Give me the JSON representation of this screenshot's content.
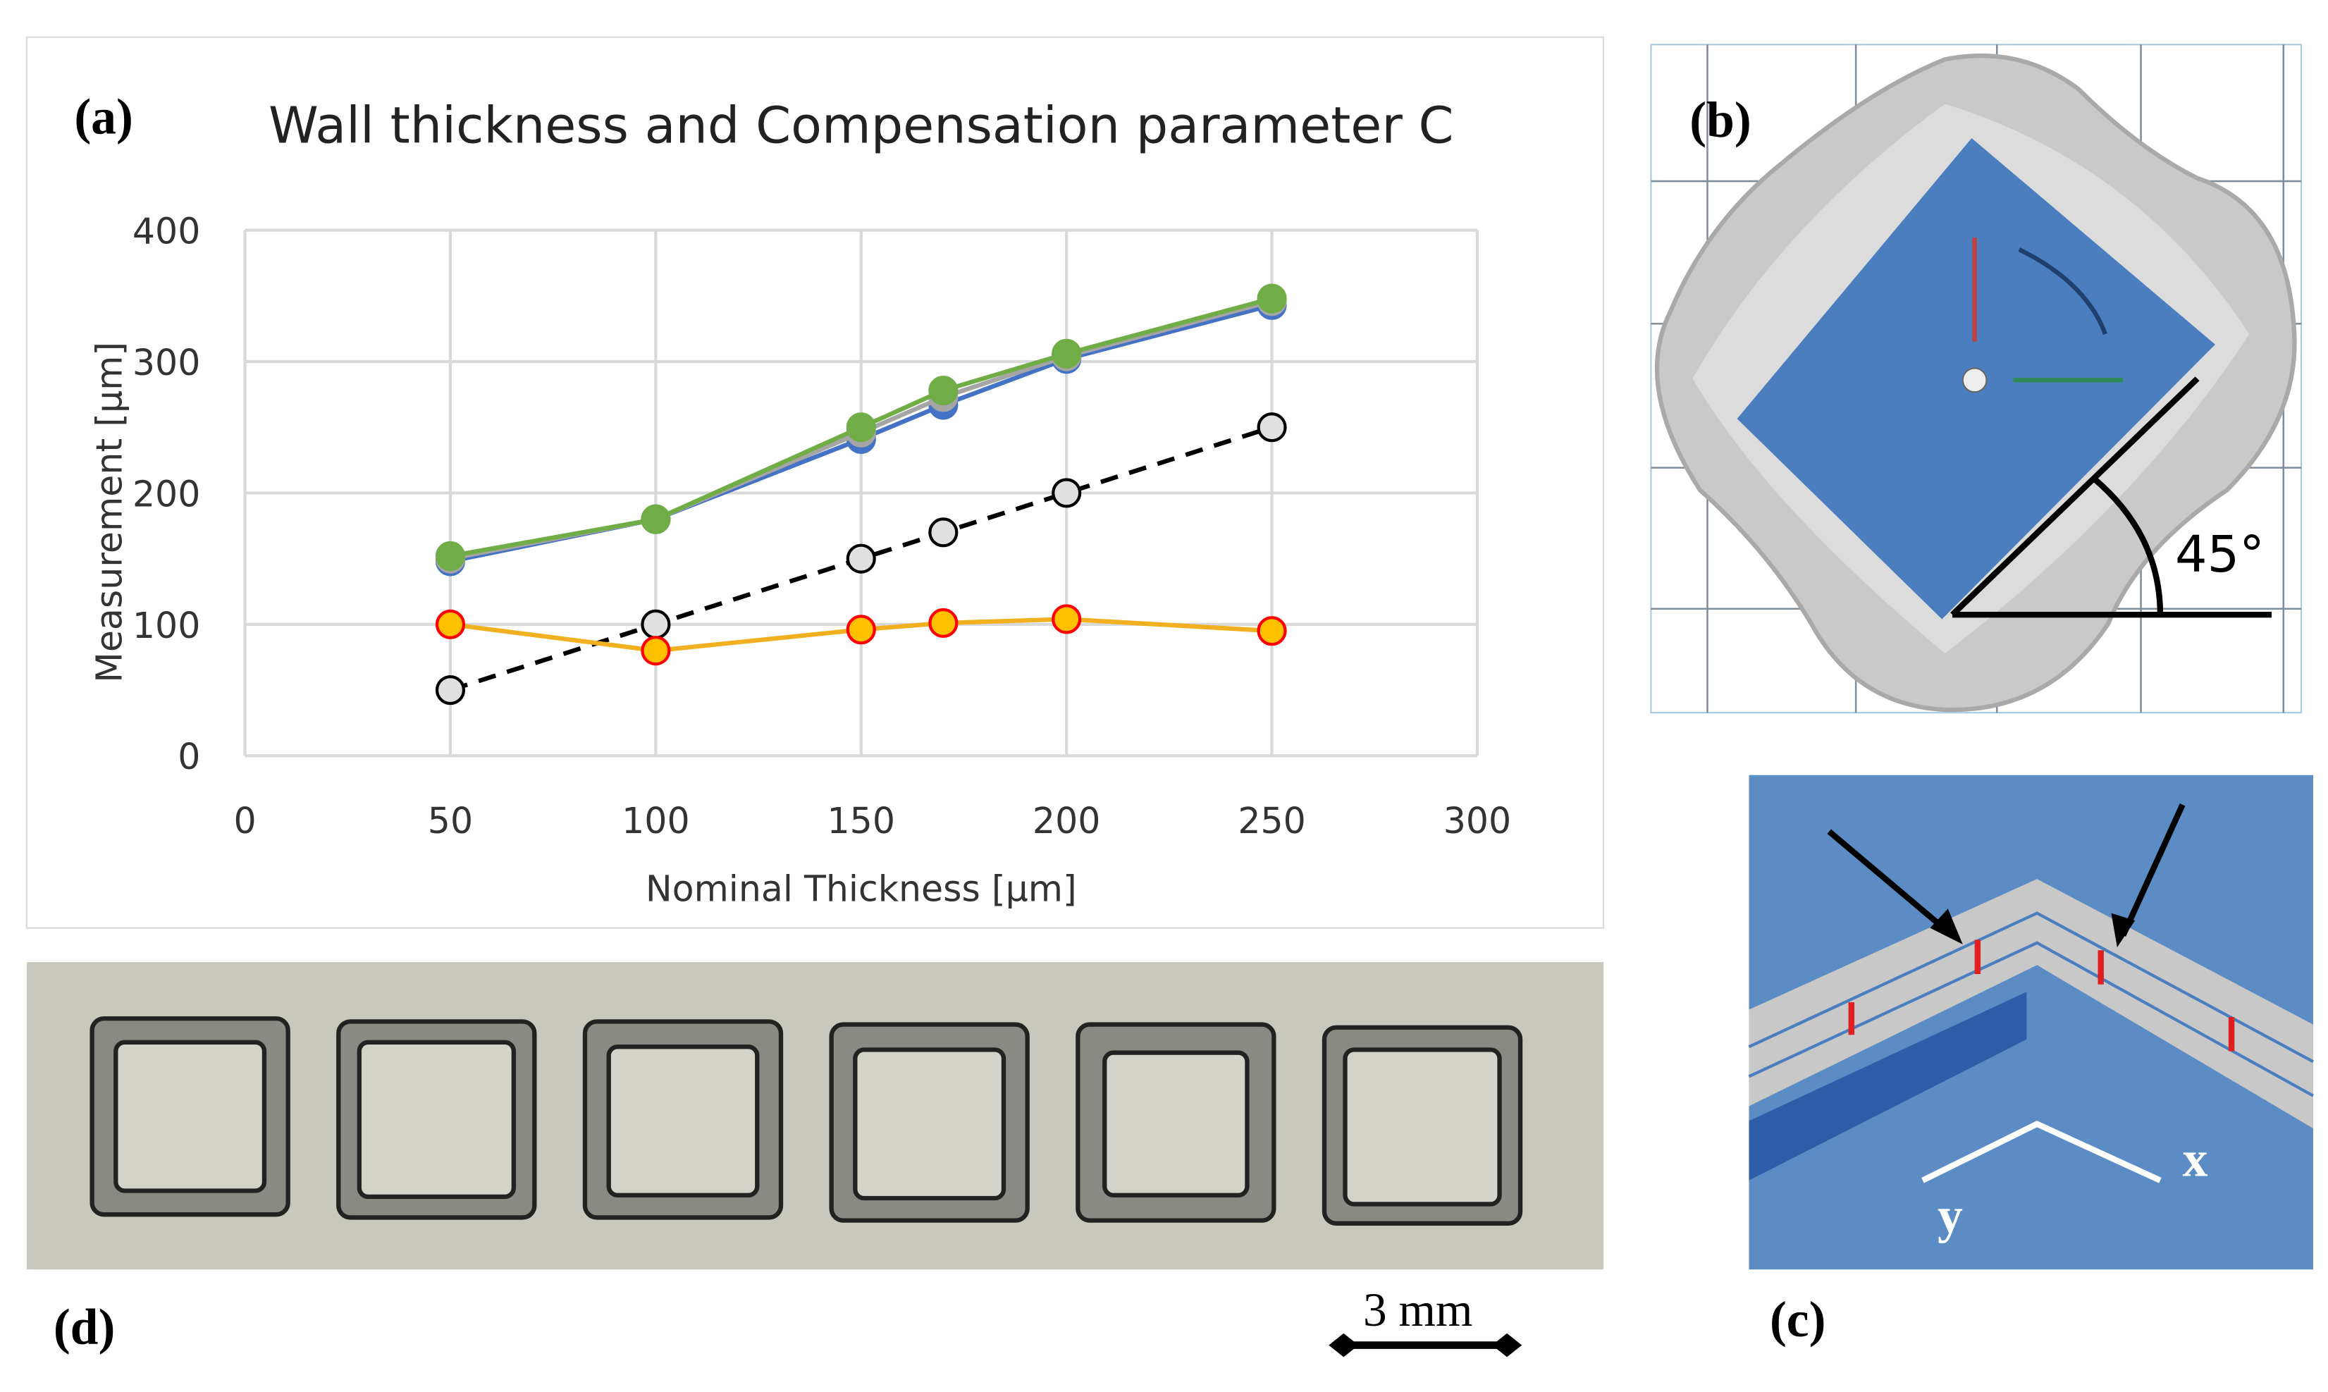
{
  "chart_data": {
    "type": "line",
    "title": "Wall thickness and Compensation parameter C",
    "x_label": "Nominal Thickness [µm]",
    "y_label": "Measurement [µm]",
    "x": [
      50,
      100,
      150,
      170,
      200,
      250
    ],
    "series": [
      {
        "color": "#4472c4",
        "marker_color": "#4472c4",
        "marker_edge": "#4472c4",
        "line_style": "solid",
        "values": [
          148,
          180,
          241,
          267,
          302,
          343
        ]
      },
      {
        "color": "#a5a5a5",
        "marker_color": "#a5a5a5",
        "marker_edge": "#a5a5a5",
        "line_style": "solid",
        "values": [
          150,
          180,
          246,
          273,
          304,
          346
        ]
      },
      {
        "color": "#70ad47",
        "marker_color": "#70ad47",
        "marker_edge": "#70ad47",
        "line_style": "solid",
        "values": [
          152,
          180,
          250,
          278,
          306,
          348
        ]
      },
      {
        "color": "#000000",
        "marker_color": "#e0e0e0",
        "marker_edge": "#000000",
        "line_style": "dashed",
        "values": [
          50,
          100,
          150,
          170,
          200,
          250
        ]
      },
      {
        "color": "#f0b020",
        "marker_color": "#ffc000",
        "marker_edge": "#ff0000",
        "line_style": "solid",
        "values": [
          100,
          80,
          96,
          101,
          104,
          95
        ]
      }
    ],
    "xlim": [
      0,
      300
    ],
    "xticks": [
      0,
      50,
      100,
      150,
      200,
      250,
      300
    ],
    "ylim": [
      0,
      400
    ],
    "yticks": [
      0,
      100,
      200,
      300,
      400
    ],
    "grid": true
  },
  "panels": {
    "a": "(a)",
    "b": "(b)",
    "c": "(c)",
    "d": "(d)",
    "angle": "45°",
    "scale": "3 mm",
    "axis_x": "x",
    "axis_y": "y"
  }
}
